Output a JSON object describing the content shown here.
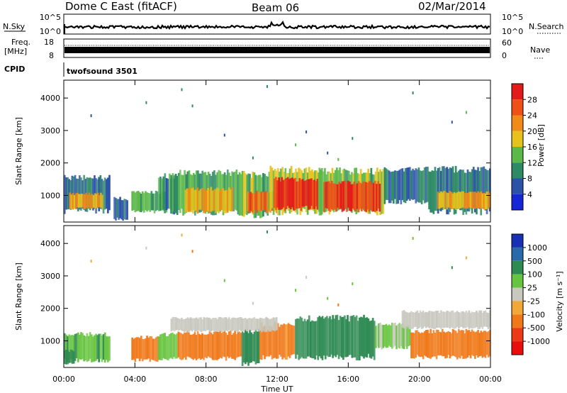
{
  "header": {
    "station": "Dome C East (fitACF)",
    "beam": "Beam 06",
    "date": "02/Mar/2014"
  },
  "strips": {
    "nsky_label": "N.Sky",
    "nsearch_label": "N.Search",
    "nsky_ticks": [
      "10^5",
      "10^0"
    ],
    "nsearch_ticks": [
      "10^5",
      "10^0"
    ],
    "freq_label": "Freq.",
    "freq_unit": "[MHz]",
    "freq_ticks": [
      "18",
      "8"
    ],
    "nave_label": "Nave",
    "nave_ticks": [
      "60",
      "0"
    ],
    "cpid_label": "CPID",
    "cpid_value": "twofsound 3501"
  },
  "power_scale": {
    "title": "Power [dB]",
    "ticks": [
      "4",
      "8",
      "12",
      "16",
      "20",
      "24",
      "28"
    ],
    "colors": [
      "#1525d8",
      "#2a52a8",
      "#2d8a64",
      "#5cb84a",
      "#e8c21a",
      "#f08a18",
      "#ee5016",
      "#e41a1a"
    ]
  },
  "velocity_scale": {
    "title": "Velocity [m s⁻¹]",
    "ticks": [
      "1000",
      "500",
      "100",
      "25",
      "-25",
      "-100",
      "-500",
      "-1000"
    ],
    "colors": [
      "#1730b4",
      "#2a6aa8",
      "#2e8a52",
      "#66c43e",
      "#c8c8bf",
      "#f2a838",
      "#f07818",
      "#ec3a16",
      "#e80e0e"
    ]
  },
  "chart_data": [
    {
      "type": "heatmap",
      "panel": "power",
      "ylabel": "Slant Range [km]",
      "xlabel": "",
      "ylim": [
        180,
        4550
      ],
      "xlim": [
        0,
        24
      ],
      "yticks": [
        1000,
        2000,
        3000,
        4000
      ],
      "colorbar": "Power [dB]",
      "colorbar_range": [
        0,
        30
      ],
      "bands": [
        {
          "t0": 0.0,
          "t1": 2.6,
          "r0": 520,
          "r1": 1550,
          "value": 8
        },
        {
          "t0": 0.3,
          "t1": 2.2,
          "r0": 600,
          "r1": 1050,
          "value": 19
        },
        {
          "t0": 2.8,
          "t1": 3.6,
          "r0": 260,
          "r1": 900,
          "value": 7
        },
        {
          "t0": 3.8,
          "t1": 5.8,
          "r0": 500,
          "r1": 1100,
          "value": 12
        },
        {
          "t0": 5.3,
          "t1": 6.5,
          "r0": 500,
          "r1": 1600,
          "value": 9
        },
        {
          "t0": 6.0,
          "t1": 10.0,
          "r0": 480,
          "r1": 1700,
          "value": 11
        },
        {
          "t0": 6.8,
          "t1": 9.5,
          "r0": 500,
          "r1": 1200,
          "value": 18
        },
        {
          "t0": 10.0,
          "t1": 11.5,
          "r0": 400,
          "r1": 1650,
          "value": 13
        },
        {
          "t0": 10.3,
          "t1": 12.0,
          "r0": 500,
          "r1": 1100,
          "value": 24
        },
        {
          "t0": 11.5,
          "t1": 14.5,
          "r0": 500,
          "r1": 1800,
          "value": 15
        },
        {
          "t0": 11.8,
          "t1": 14.3,
          "r0": 600,
          "r1": 1500,
          "value": 27
        },
        {
          "t0": 14.3,
          "t1": 18.0,
          "r0": 500,
          "r1": 1750,
          "value": 14
        },
        {
          "t0": 14.6,
          "t1": 17.8,
          "r0": 550,
          "r1": 1400,
          "value": 26
        },
        {
          "t0": 18.0,
          "t1": 20.5,
          "r0": 800,
          "r1": 1800,
          "value": 8
        },
        {
          "t0": 20.5,
          "t1": 24.0,
          "r0": 500,
          "r1": 1800,
          "value": 8
        },
        {
          "t0": 21.0,
          "t1": 24.0,
          "r0": 600,
          "r1": 1100,
          "value": 18
        }
      ],
      "sparse": [
        {
          "t": 1.5,
          "r": 3500
        },
        {
          "t": 6.6,
          "r": 4300
        },
        {
          "t": 7.2,
          "r": 3800
        },
        {
          "t": 9.0,
          "r": 2900
        },
        {
          "t": 10.6,
          "r": 2200
        },
        {
          "t": 13.0,
          "r": 2600
        },
        {
          "t": 13.6,
          "r": 3000
        },
        {
          "t": 14.8,
          "r": 2350
        },
        {
          "t": 16.2,
          "r": 2800
        },
        {
          "t": 19.6,
          "r": 4200
        },
        {
          "t": 21.8,
          "r": 3300
        },
        {
          "t": 22.6,
          "r": 3600
        },
        {
          "t": 4.6,
          "r": 3900
        },
        {
          "t": 11.4,
          "r": 4400
        },
        {
          "t": 15.4,
          "r": 2150
        }
      ]
    },
    {
      "type": "heatmap",
      "panel": "velocity",
      "ylabel": "Slant Range [km]",
      "xlabel": "Time UT",
      "ylim": [
        180,
        4550
      ],
      "xlim": [
        0,
        24
      ],
      "yticks": [
        1000,
        2000,
        3000,
        4000
      ],
      "xticks": [
        "00:00",
        "04:00",
        "08:00",
        "12:00",
        "16:00",
        "20:00",
        "00:00"
      ],
      "xtick_values": [
        0,
        4,
        8,
        12,
        16,
        20,
        24
      ],
      "colorbar": "Velocity [m s⁻¹]",
      "colorbar_range": [
        -1000,
        1000
      ],
      "bands": [
        {
          "t0": 0.0,
          "t1": 2.6,
          "r0": 400,
          "r1": 1200,
          "value": 80
        },
        {
          "t0": 0.0,
          "t1": 0.6,
          "r0": 300,
          "r1": 700,
          "value": 400
        },
        {
          "t0": 3.8,
          "t1": 5.3,
          "r0": 400,
          "r1": 1100,
          "value": -300
        },
        {
          "t0": 5.3,
          "t1": 6.4,
          "r0": 450,
          "r1": 1200,
          "value": 60
        },
        {
          "t0": 6.4,
          "t1": 10.0,
          "r0": 450,
          "r1": 1250,
          "value": -250
        },
        {
          "t0": 10.0,
          "t1": 11.0,
          "r0": 300,
          "r1": 1300,
          "value": 300
        },
        {
          "t0": 11.0,
          "t1": 13.0,
          "r0": 500,
          "r1": 1500,
          "value": -150
        },
        {
          "t0": 13.0,
          "t1": 17.5,
          "r0": 500,
          "r1": 1700,
          "value": 250
        },
        {
          "t0": 17.5,
          "t1": 19.5,
          "r0": 800,
          "r1": 1500,
          "value": 40
        },
        {
          "t0": 19.5,
          "t1": 24.0,
          "r0": 500,
          "r1": 1300,
          "value": -250
        },
        {
          "t0": 19.0,
          "t1": 24.0,
          "r0": 1400,
          "r1": 1900,
          "value": 0
        },
        {
          "t0": 6.0,
          "t1": 12.0,
          "r0": 1300,
          "r1": 1700,
          "value": 0
        }
      ],
      "sparse": [
        {
          "t": 1.5,
          "r": 3500
        },
        {
          "t": 6.6,
          "r": 4300
        },
        {
          "t": 7.2,
          "r": 3800
        },
        {
          "t": 9.0,
          "r": 2900
        },
        {
          "t": 10.6,
          "r": 2200
        },
        {
          "t": 13.0,
          "r": 2600
        },
        {
          "t": 13.6,
          "r": 3000
        },
        {
          "t": 14.8,
          "r": 2350
        },
        {
          "t": 16.2,
          "r": 2800
        },
        {
          "t": 19.6,
          "r": 4200
        },
        {
          "t": 21.8,
          "r": 3300
        },
        {
          "t": 22.6,
          "r": 3600
        },
        {
          "t": 4.6,
          "r": 3900
        },
        {
          "t": 11.4,
          "r": 4400
        },
        {
          "t": 15.4,
          "r": 2150
        }
      ]
    }
  ]
}
